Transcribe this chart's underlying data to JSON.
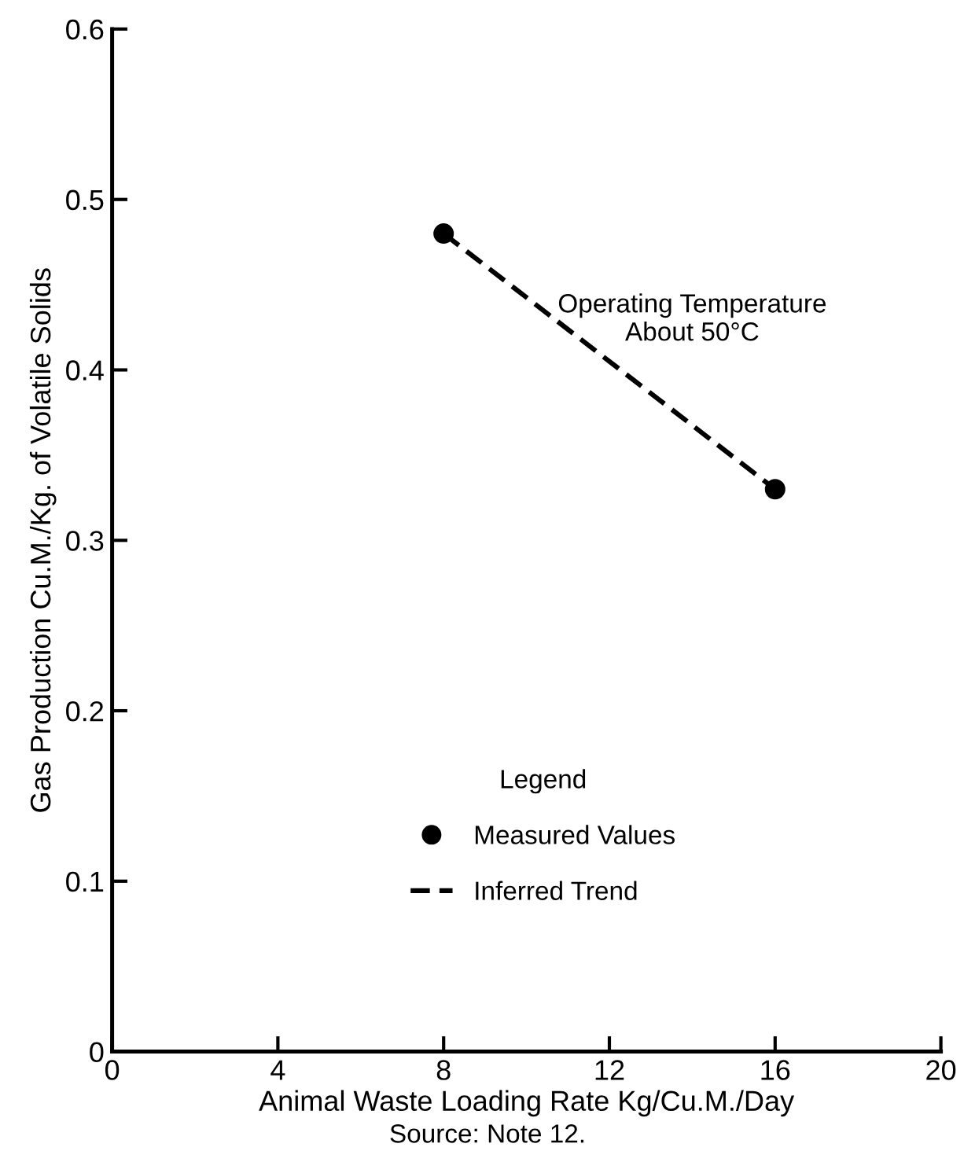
{
  "chart_data": {
    "type": "line",
    "xlabel": "Animal Waste Loading Rate Kg/Cu.M./Day",
    "ylabel": "Gas Production Cu.M./Kg. of Volatile Solids",
    "legend_title": "Legend",
    "x": [
      8,
      16
    ],
    "series": [
      {
        "name": "Measured Values",
        "type": "scatter",
        "color": "#000000",
        "marker": "circle",
        "values": [
          0.48,
          0.33
        ]
      },
      {
        "name": "Inferred Trend",
        "color": "#000000",
        "marker": "none",
        "line_style": "dashed",
        "values": [
          0.48,
          0.33
        ]
      }
    ],
    "xlim": [
      0,
      20
    ],
    "xticks": [
      0,
      4,
      8,
      12,
      16,
      20
    ],
    "ylim": [
      0,
      0.6
    ],
    "yticks": [
      0,
      0.1,
      0.2,
      0.3,
      0.4,
      0.5,
      0.6
    ],
    "grid": false,
    "legend": "bottom",
    "annotations": [
      "Operating Temperature\nAbout 50°C",
      "Source: Note 12."
    ]
  }
}
